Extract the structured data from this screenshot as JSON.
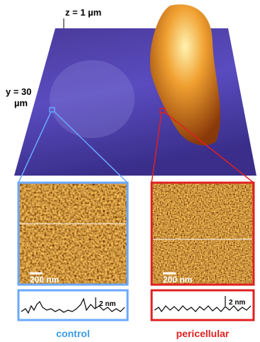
{
  "labels": {
    "z_axis": "z = 1 µm",
    "y_axis_line1": "y = 30",
    "y_axis_line2": "µm"
  },
  "panels": [
    {
      "scale_bar": "200 nm",
      "profile_scale": "2 nm",
      "caption": "control"
    },
    {
      "scale_bar": "200 nm",
      "profile_scale": "2 nm",
      "caption": "pericellular"
    }
  ]
}
